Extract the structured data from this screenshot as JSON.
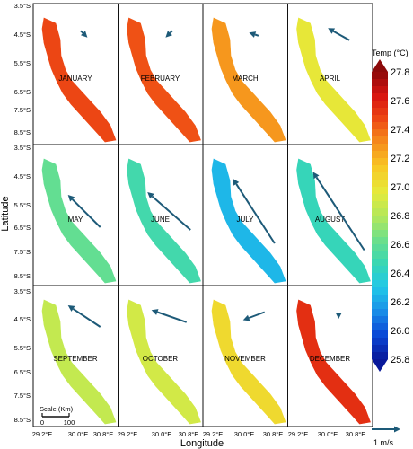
{
  "figure": {
    "x_axis_label": "Longitude",
    "y_axis_label": "Latitude",
    "lat_ticks": [
      "3.5°S",
      "4.5°S",
      "5.5°S",
      "6.5°S",
      "7.5°S",
      "8.5°S"
    ],
    "lon_ticks": [
      "29.2°E",
      "30.0°E",
      "30.8°E"
    ]
  },
  "colorbar": {
    "title": "Temp (°C)",
    "tick_labels": [
      "27.8",
      "27.6",
      "27.4",
      "27.2",
      "27.0",
      "26.8",
      "26.6",
      "26.4",
      "26.2",
      "26.0",
      "25.8"
    ],
    "min": 25.8,
    "max": 27.8,
    "colors": [
      "#08189a",
      "#0a46d6",
      "#1a8fe8",
      "#20c8e8",
      "#38d6b4",
      "#6ee08a",
      "#b4e85a",
      "#e6ea3a",
      "#f8c824",
      "#f6901c",
      "#ee4a14",
      "#d81410",
      "#8c0a0a"
    ]
  },
  "scale": {
    "title": "Scale (Km)",
    "labels": [
      "0",
      "100"
    ]
  },
  "vector_legend": {
    "label": "1 m/s",
    "color": "#1d5a78"
  },
  "panels": [
    {
      "month": "JANUARY",
      "temp": 27.48,
      "wind_u": 0.25,
      "wind_v": -0.25
    },
    {
      "month": "FEBRUARY",
      "temp": 27.45,
      "wind_u": -0.25,
      "wind_v": -0.25
    },
    {
      "month": "MARCH",
      "temp": 27.28,
      "wind_u": -0.35,
      "wind_v": 0.12
    },
    {
      "month": "APRIL",
      "temp": 26.98,
      "wind_u": -0.8,
      "wind_v": 0.45
    },
    {
      "month": "MAY",
      "temp": 26.6,
      "wind_u": -1.2,
      "wind_v": 1.2
    },
    {
      "month": "JUNE",
      "temp": 26.5,
      "wind_u": -1.6,
      "wind_v": 1.4
    },
    {
      "month": "JULY",
      "temp": 26.25,
      "wind_u": -1.55,
      "wind_v": 2.4
    },
    {
      "month": "AUGUST",
      "temp": 26.45,
      "wind_u": -1.9,
      "wind_v": 2.9
    },
    {
      "month": "SEPTEMBER",
      "temp": 26.85,
      "wind_u": -1.2,
      "wind_v": 0.8
    },
    {
      "month": "OCTOBER",
      "temp": 26.9,
      "wind_u": -1.3,
      "wind_v": 0.45
    },
    {
      "month": "NOVEMBER",
      "temp": 27.05,
      "wind_u": -0.8,
      "wind_v": -0.3
    },
    {
      "month": "DECEMBER",
      "temp": 27.55,
      "wind_u": 0.0,
      "wind_v": -0.2
    }
  ]
}
